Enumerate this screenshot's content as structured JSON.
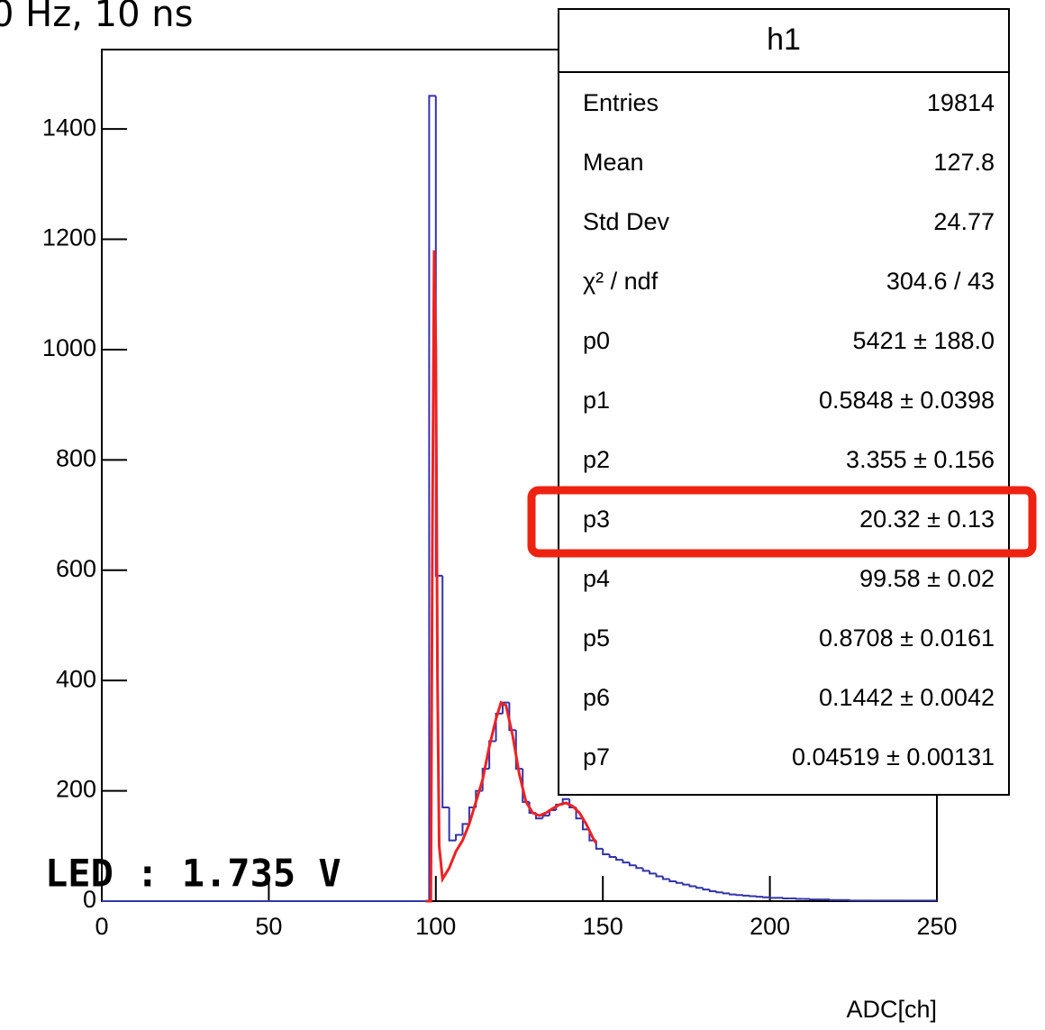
{
  "chart_data": {
    "type": "histogram",
    "title": "0 Hz, 10 ns",
    "annotation": "LED : 1.735 V",
    "x_label": "ADC[ch]",
    "xlim": [
      0,
      250
    ],
    "xticks": [
      0,
      50,
      100,
      150,
      200,
      250
    ],
    "ylim": [
      0,
      1544
    ],
    "yticks": [
      0,
      200,
      400,
      600,
      800,
      1000,
      1200,
      1400
    ],
    "color": "#3333aa",
    "bins": [
      98,
      100,
      102,
      104,
      106,
      108,
      110,
      112,
      114,
      116,
      118,
      120,
      122,
      124,
      126,
      128,
      130,
      132,
      134,
      136,
      138,
      140,
      142,
      144,
      146,
      148,
      150,
      152,
      154,
      156,
      158,
      160,
      162,
      164,
      166,
      168,
      170,
      172,
      174,
      176,
      178,
      180,
      182,
      184,
      186,
      188,
      190,
      192,
      194,
      196,
      198,
      200,
      202,
      204,
      206,
      208,
      210,
      212,
      214,
      216,
      218,
      220,
      222,
      224,
      226,
      228,
      230,
      232,
      234,
      236,
      238,
      240,
      242,
      244,
      246,
      248,
      250
    ],
    "counts": [
      1460,
      590,
      170,
      110,
      120,
      140,
      170,
      200,
      240,
      290,
      340,
      360,
      310,
      240,
      180,
      160,
      150,
      155,
      165,
      175,
      185,
      170,
      150,
      130,
      110,
      95,
      85,
      80,
      75,
      70,
      65,
      60,
      55,
      50,
      45,
      40,
      36,
      33,
      30,
      27,
      24,
      21,
      18,
      16,
      14,
      12,
      11,
      10,
      9,
      8,
      7,
      6,
      6,
      5,
      5,
      4,
      4,
      3,
      3,
      3,
      2,
      2,
      2,
      1,
      1,
      1,
      1,
      1,
      1,
      1,
      1,
      1,
      1,
      1,
      1,
      1
    ],
    "fit": {
      "color": "#ee2222",
      "x": [
        97,
        98.5,
        99,
        99.5,
        100,
        100.5,
        101,
        102,
        104,
        106,
        108,
        110,
        112,
        114,
        116,
        118,
        119.5,
        121,
        123,
        125,
        127,
        129,
        131,
        133,
        135,
        137,
        139,
        141,
        143,
        145,
        147,
        148
      ],
      "values": [
        0,
        0,
        700,
        1180,
        1000,
        400,
        100,
        40,
        60,
        90,
        110,
        140,
        180,
        220,
        280,
        330,
        360,
        355,
        300,
        230,
        180,
        160,
        155,
        160,
        168,
        175,
        178,
        172,
        160,
        140,
        115,
        105
      ]
    },
    "stats_box": {
      "title": "h1",
      "rows": [
        [
          "Entries",
          "19814"
        ],
        [
          "Mean",
          "127.8"
        ],
        [
          "Std Dev",
          "24.77"
        ],
        [
          "χ² / ndf",
          "304.6 / 43"
        ],
        [
          "p0",
          "5421 ± 188.0"
        ],
        [
          "p1",
          "0.5848 ± 0.0398"
        ],
        [
          "p2",
          "3.355 ± 0.156"
        ],
        [
          "p3",
          "20.32 ± 0.13"
        ],
        [
          "p4",
          "99.58 ± 0.02"
        ],
        [
          "p5",
          "0.8708 ± 0.0161"
        ],
        [
          "p6",
          "0.1442 ± 0.0042"
        ],
        [
          "p7",
          "0.04519 ± 0.00131"
        ]
      ]
    }
  }
}
